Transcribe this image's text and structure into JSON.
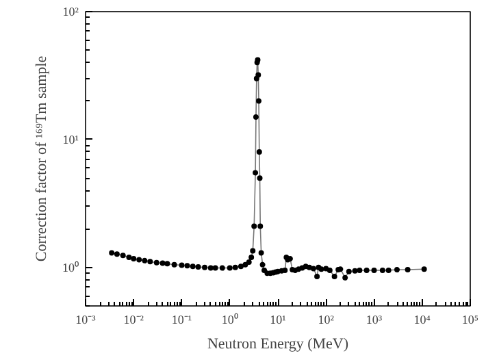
{
  "chart_data": {
    "type": "line",
    "xlabel": "Neutron Energy (MeV)",
    "ylabel": "Correction factor of ¹⁶⁹Tm sample",
    "log": "xy",
    "grid": false,
    "marker": "circle",
    "line_style": "solid",
    "xlim": [
      0.001,
      100000
    ],
    "ylim": [
      0.5,
      100
    ],
    "xticks": [
      {
        "value": 0.001,
        "label": "10⁻³"
      },
      {
        "value": 0.01,
        "label": "10⁻²"
      },
      {
        "value": 0.1,
        "label": "10⁻¹"
      },
      {
        "value": 1,
        "label": "10⁰"
      },
      {
        "value": 10,
        "label": "10¹"
      },
      {
        "value": 100,
        "label": "10²"
      },
      {
        "value": 1000,
        "label": "10³"
      },
      {
        "value": 10000,
        "label": "10⁴"
      },
      {
        "value": 100000,
        "label": "10⁵"
      }
    ],
    "yticks": [
      {
        "value": 1,
        "label": "10⁰"
      },
      {
        "value": 10,
        "label": "10¹"
      },
      {
        "value": 100,
        "label": "10²"
      }
    ],
    "series": [
      {
        "color": "#000000",
        "x": [
          0.0035,
          0.0045,
          0.006,
          0.008,
          0.01,
          0.013,
          0.017,
          0.022,
          0.03,
          0.04,
          0.05,
          0.07,
          0.1,
          0.13,
          0.17,
          0.22,
          0.3,
          0.4,
          0.5,
          0.7,
          1.0,
          1.3,
          1.7,
          2.1,
          2.5,
          2.8,
          3.0,
          3.2,
          3.4,
          3.5,
          3.6,
          3.7,
          3.8,
          3.9,
          4.0,
          4.1,
          4.2,
          4.3,
          4.5,
          4.8,
          5.2,
          6,
          7,
          8,
          9,
          10,
          12,
          14,
          15,
          16,
          18,
          20,
          23,
          27,
          32,
          38,
          45,
          55,
          65,
          70,
          80,
          100,
          120,
          150,
          180,
          200,
          250,
          300,
          400,
          500,
          700,
          1000,
          1500,
          2000,
          3000,
          5000,
          11000
        ],
        "values": [
          1.3,
          1.27,
          1.24,
          1.2,
          1.17,
          1.15,
          1.13,
          1.11,
          1.09,
          1.08,
          1.07,
          1.05,
          1.04,
          1.03,
          1.02,
          1.01,
          1.0,
          0.99,
          0.99,
          0.99,
          0.99,
          1.0,
          1.02,
          1.05,
          1.1,
          1.2,
          1.35,
          2.1,
          5.5,
          15,
          30,
          40,
          42,
          32,
          20,
          8,
          5,
          2.1,
          1.3,
          1.05,
          0.95,
          0.9,
          0.9,
          0.91,
          0.92,
          0.93,
          0.94,
          0.95,
          1.2,
          1.15,
          1.17,
          0.96,
          0.95,
          0.97,
          0.99,
          1.02,
          1.0,
          0.98,
          0.85,
          1.0,
          0.97,
          0.98,
          0.95,
          0.85,
          0.96,
          0.97,
          0.83,
          0.93,
          0.94,
          0.95,
          0.95,
          0.95,
          0.95,
          0.95,
          0.96,
          0.96,
          0.97
        ]
      }
    ]
  }
}
